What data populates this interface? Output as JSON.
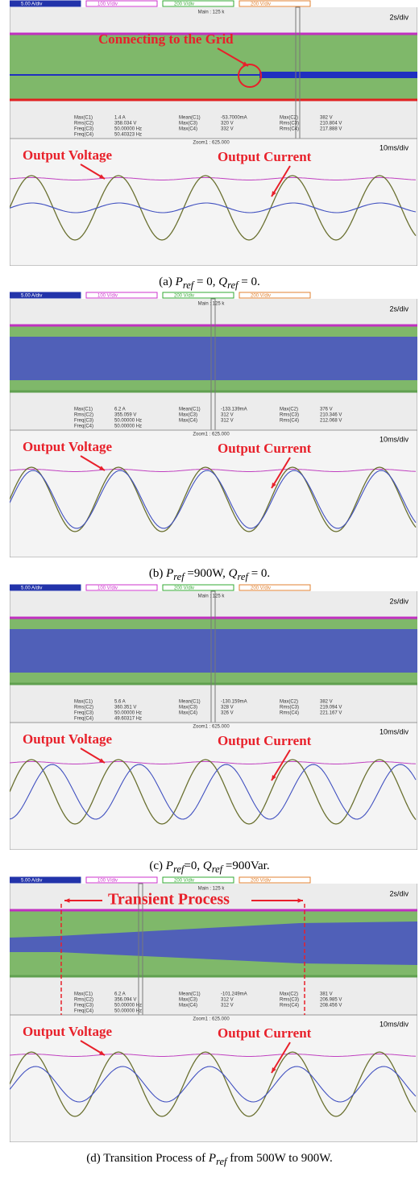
{
  "panels": [
    {
      "channels": [
        "5.00 A/div",
        "100 V/div",
        "200 V/div",
        "200 V/div"
      ],
      "main": "Main : 125 k",
      "timebase": "2s/div",
      "zoom": "Zoom1 : 625.000",
      "zoom_timebase": "10ms/div",
      "measurements": [
        [
          [
            "Max(C1)",
            "1.4 A"
          ],
          [
            "Mean(C1)",
            "-53.7000mA"
          ],
          [
            "Max(C2)",
            "382 V"
          ]
        ],
        [
          [
            "Rms(C2)",
            "358.034 V"
          ],
          [
            "Max(C3)",
            "320 V"
          ],
          [
            "Rms(C3)",
            "210.804 V"
          ]
        ],
        [
          [
            "Freq(C3)",
            "50.00000 Hz"
          ],
          [
            "Max(C4)",
            "332 V"
          ],
          [
            "Rms(C4)",
            "217.888 V"
          ]
        ],
        [
          [
            "Freq(C4)",
            "50.40323 Hz"
          ]
        ]
      ],
      "annotations": [
        "Connecting to the Grid",
        "Output Voltage",
        "Output Current"
      ],
      "caption": [
        {
          "text": "(a) "
        },
        {
          "text": "P",
          "kind": "italic"
        },
        {
          "text": "ref",
          "kind": "sub"
        },
        {
          "text": " = 0, "
        },
        {
          "text": "Q",
          "kind": "italic"
        },
        {
          "text": "ref",
          "kind": "sub"
        },
        {
          "text": " = 0."
        }
      ]
    },
    {
      "channels": [
        "5.00 A/div",
        "100 V/div",
        "200 V/div",
        "200 V/div"
      ],
      "main": "Main : 125 k",
      "timebase": "2s/div",
      "zoom": "Zoom1 : 625.000",
      "zoom_timebase": "10ms/div",
      "measurements": [
        [
          [
            "Max(C1)",
            "6.2 A"
          ],
          [
            "Mean(C1)",
            "-133.139mA"
          ],
          [
            "Max(C2)",
            "376 V"
          ]
        ],
        [
          [
            "Rms(C2)",
            "355.059 V"
          ],
          [
            "Max(C3)",
            "312 V"
          ],
          [
            "Rms(C3)",
            "210.346 V"
          ]
        ],
        [
          [
            "Freq(C3)",
            "50.00000 Hz"
          ],
          [
            "Max(C4)",
            "312 V"
          ],
          [
            "Rms(C4)",
            "212.068 V"
          ]
        ],
        [
          [
            "Freq(C4)",
            "50.00000 Hz"
          ]
        ]
      ],
      "annotations": [
        "Output Voltage",
        "Output Current"
      ],
      "caption": [
        {
          "text": "(b) "
        },
        {
          "text": "P",
          "kind": "italic"
        },
        {
          "text": "ref",
          "kind": "sub"
        },
        {
          "text": " =900W, "
        },
        {
          "text": "Q",
          "kind": "italic"
        },
        {
          "text": "ref",
          "kind": "sub"
        },
        {
          "text": " = 0."
        }
      ]
    },
    {
      "channels": [
        "5.00 A/div",
        "100 V/div",
        "200 V/div",
        "200 V/div"
      ],
      "main": "Main : 125 k",
      "timebase": "2s/div",
      "zoom": "Zoom1 : 625.000",
      "zoom_timebase": "10ms/div",
      "measurements": [
        [
          [
            "Max(C1)",
            "5.6 A"
          ],
          [
            "Mean(C1)",
            "-130.159mA"
          ],
          [
            "Max(C2)",
            "382 V"
          ]
        ],
        [
          [
            "Rms(C2)",
            "360.351 V"
          ],
          [
            "Max(C3)",
            "328 V"
          ],
          [
            "Rms(C3)",
            "219.094 V"
          ]
        ],
        [
          [
            "Freq(C3)",
            "50.00000 Hz"
          ],
          [
            "Max(C4)",
            "326 V"
          ],
          [
            "Rms(C4)",
            "221.167 V"
          ]
        ],
        [
          [
            "Freq(C4)",
            "49.60317 Hz"
          ]
        ]
      ],
      "annotations": [
        "Output Voltage",
        "Output Current"
      ],
      "caption": [
        {
          "text": "(c) "
        },
        {
          "text": "P",
          "kind": "italic"
        },
        {
          "text": "ref",
          "kind": "sub"
        },
        {
          "text": "=0, "
        },
        {
          "text": "Q",
          "kind": "italic"
        },
        {
          "text": "ref",
          "kind": "sub"
        },
        {
          "text": " =900Var."
        }
      ]
    },
    {
      "channels": [
        "5.00 A/div",
        "100 V/div",
        "200 V/div",
        "200 V/div"
      ],
      "main": "Main : 125 k",
      "timebase": "2s/div",
      "zoom": "Zoom1 : 625.000",
      "zoom_timebase": "10ms/div",
      "measurements": [
        [
          [
            "Max(C1)",
            "6.2 A"
          ],
          [
            "Mean(C1)",
            "-101.249mA"
          ],
          [
            "Max(C2)",
            "381 V"
          ]
        ],
        [
          [
            "Rms(C2)",
            "356.094 V"
          ],
          [
            "Max(C3)",
            "312 V"
          ],
          [
            "Rms(C3)",
            "206.985 V"
          ]
        ],
        [
          [
            "Freq(C3)",
            "50.00000 Hz"
          ],
          [
            "Max(C4)",
            "312 V"
          ],
          [
            "Rms(C4)",
            "208.456 V"
          ]
        ],
        [
          [
            "Freq(C4)",
            "50.00000 Hz"
          ]
        ]
      ],
      "annotations": [
        "Transient Process",
        "Output Voltage",
        "Output Current"
      ],
      "caption": [
        {
          "text": "(d) Transition Process of "
        },
        {
          "text": "P",
          "kind": "italic"
        },
        {
          "text": "ref",
          "kind": "sub"
        },
        {
          "text": " from 500W to 900W."
        }
      ]
    }
  ]
}
